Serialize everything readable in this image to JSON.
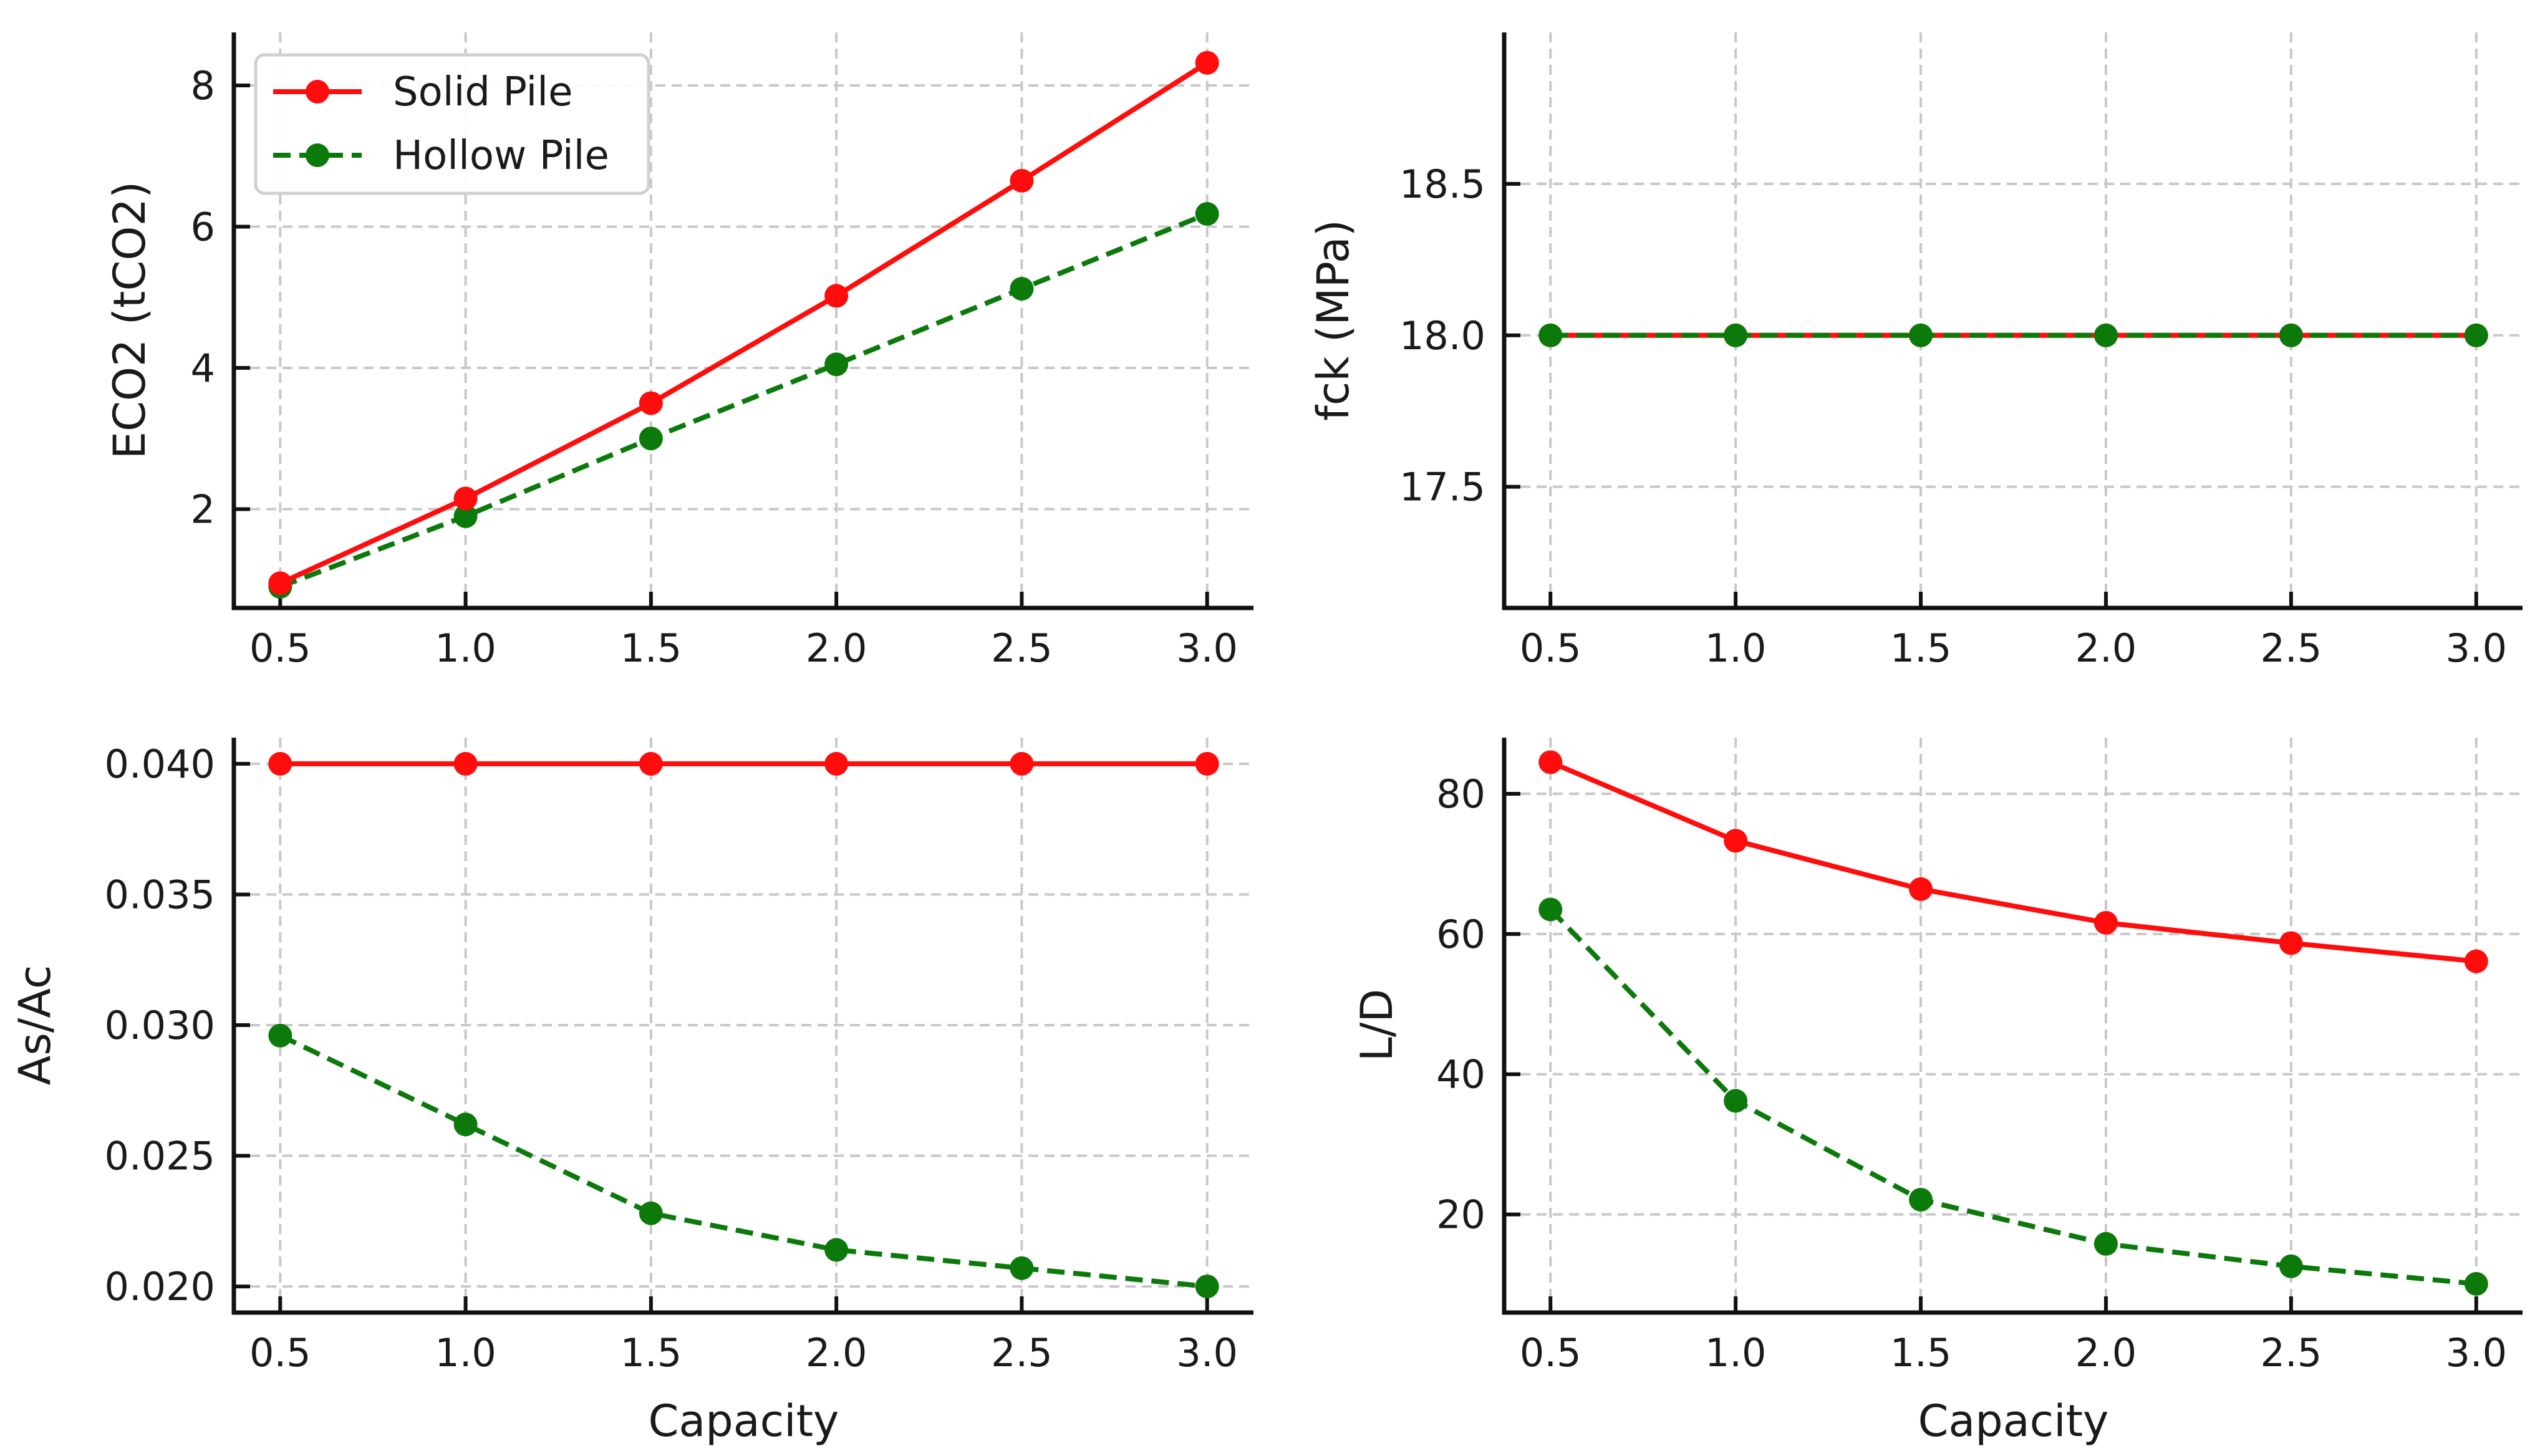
{
  "chart_data": [
    {
      "type": "line",
      "id": "eco2",
      "title": "",
      "xlabel": "",
      "ylabel": "ECO2 (tCO2)",
      "x": [
        0.5,
        1.0,
        1.5,
        2.0,
        2.5,
        3.0
      ],
      "xticks": [
        "0.5",
        "1.0",
        "1.5",
        "2.0",
        "2.5",
        "3.0"
      ],
      "xlim": [
        0.375,
        3.125
      ],
      "ylim": [
        0.6,
        8.75
      ],
      "yticks": [
        2,
        4,
        6,
        8
      ],
      "ytick_labels": [
        "2",
        "4",
        "6",
        "8"
      ],
      "legend": "upper-left",
      "series": [
        {
          "name": "Solid Pile",
          "color": "#ff0d0d",
          "style": "solid",
          "values": [
            0.95,
            2.15,
            3.5,
            5.02,
            6.65,
            8.32
          ]
        },
        {
          "name": "Hollow Pile",
          "color": "#0b7a0b",
          "style": "dashed",
          "values": [
            0.9,
            1.9,
            3.0,
            4.05,
            5.12,
            6.18
          ]
        }
      ]
    },
    {
      "type": "line",
      "id": "fck",
      "title": "",
      "xlabel": "",
      "ylabel": "fck (MPa)",
      "x": [
        0.5,
        1.0,
        1.5,
        2.0,
        2.5,
        3.0
      ],
      "xticks": [
        "0.5",
        "1.0",
        "1.5",
        "2.0",
        "2.5",
        "3.0"
      ],
      "xlim": [
        0.375,
        3.125
      ],
      "ylim": [
        17.1,
        19.0
      ],
      "yticks": [
        17.5,
        18.0,
        18.5
      ],
      "ytick_labels": [
        "17.5",
        "18.0",
        "18.5"
      ],
      "series": [
        {
          "name": "Solid Pile",
          "color": "#ff0d0d",
          "style": "solid",
          "values": [
            18.0,
            18.0,
            18.0,
            18.0,
            18.0,
            18.0
          ]
        },
        {
          "name": "Hollow Pile",
          "color": "#0b7a0b",
          "style": "dashed",
          "values": [
            18.0,
            18.0,
            18.0,
            18.0,
            18.0,
            18.0
          ]
        }
      ]
    },
    {
      "type": "line",
      "id": "asac",
      "title": "",
      "xlabel": "Capacity",
      "ylabel": "As/Ac",
      "x": [
        0.5,
        1.0,
        1.5,
        2.0,
        2.5,
        3.0
      ],
      "xticks": [
        "0.5",
        "1.0",
        "1.5",
        "2.0",
        "2.5",
        "3.0"
      ],
      "xlim": [
        0.375,
        3.125
      ],
      "ylim": [
        0.019,
        0.041
      ],
      "yticks": [
        0.02,
        0.025,
        0.03,
        0.035,
        0.04
      ],
      "ytick_labels": [
        "0.020",
        "0.025",
        "0.030",
        "0.035",
        "0.040"
      ],
      "series": [
        {
          "name": "Solid Pile",
          "color": "#ff0d0d",
          "style": "solid",
          "values": [
            0.04,
            0.04,
            0.04,
            0.04,
            0.04,
            0.04
          ]
        },
        {
          "name": "Hollow Pile",
          "color": "#0b7a0b",
          "style": "dashed",
          "values": [
            0.0296,
            0.0262,
            0.0228,
            0.0214,
            0.0207,
            0.02
          ]
        }
      ]
    },
    {
      "type": "line",
      "id": "ld",
      "title": "",
      "xlabel": "Capacity",
      "ylabel": "L/D",
      "x": [
        0.5,
        1.0,
        1.5,
        2.0,
        2.5,
        3.0
      ],
      "xticks": [
        "0.5",
        "1.0",
        "1.5",
        "2.0",
        "2.5",
        "3.0"
      ],
      "xlim": [
        0.375,
        3.125
      ],
      "ylim": [
        6,
        88
      ],
      "yticks": [
        20,
        40,
        60,
        80
      ],
      "ytick_labels": [
        "20",
        "40",
        "60",
        "80"
      ],
      "series": [
        {
          "name": "Solid Pile",
          "color": "#ff0d0d",
          "style": "solid",
          "values": [
            84.5,
            73.3,
            66.4,
            61.6,
            58.7,
            56.1
          ]
        },
        {
          "name": "Hollow Pile",
          "color": "#0b7a0b",
          "style": "dashed",
          "values": [
            63.5,
            36.2,
            22.1,
            15.8,
            12.6,
            10.1
          ]
        }
      ]
    }
  ]
}
